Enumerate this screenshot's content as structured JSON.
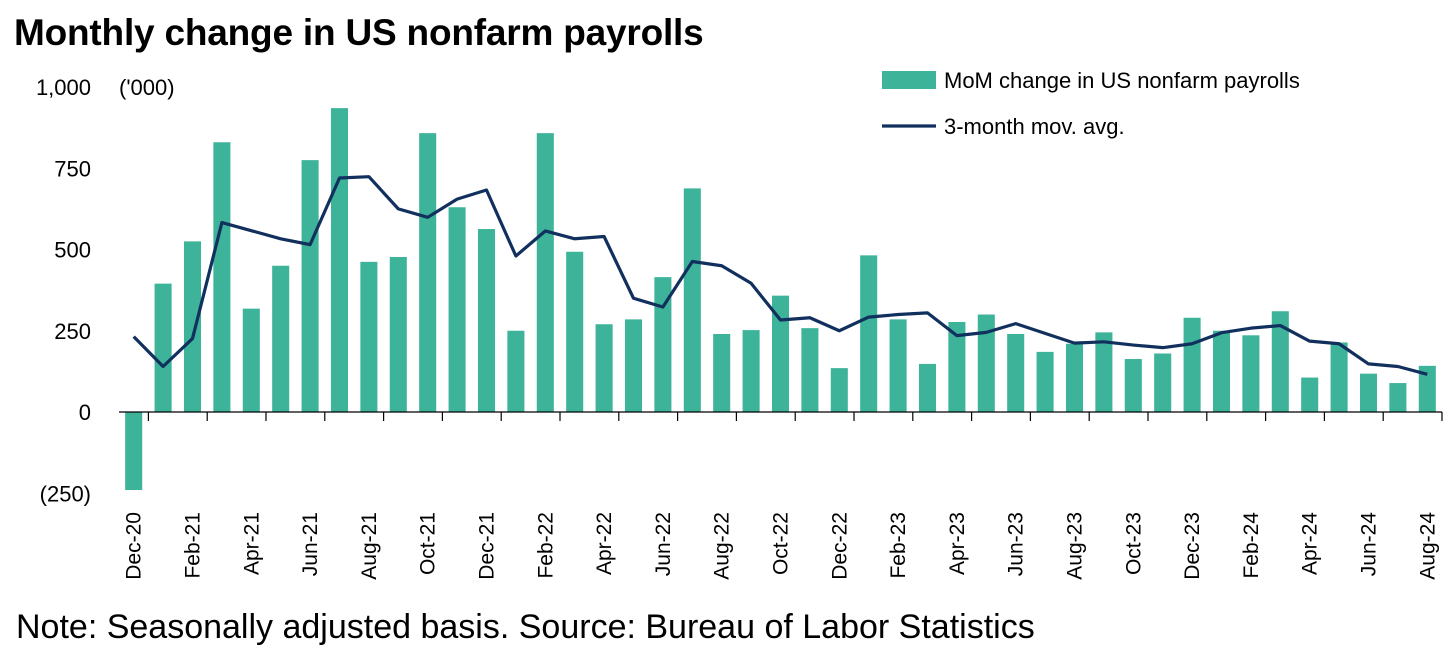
{
  "title": "Monthly change in US nonfarm payrolls",
  "note": "Note: Seasonally adjusted basis. Source: Bureau of Labor Statistics",
  "colors": {
    "bar": "#3db39a",
    "line": "#12305e",
    "axis": "#000000"
  },
  "chart_data": {
    "type": "bar",
    "title": "Monthly change in US nonfarm payrolls",
    "unit_label": "('000)",
    "xlabel": "",
    "ylabel": "('000)",
    "ylim": [
      -250,
      1000
    ],
    "yticks": [
      -250,
      0,
      250,
      500,
      750,
      1000
    ],
    "ytick_labels": [
      "(250)",
      "0",
      "250",
      "500",
      "750",
      "1,000"
    ],
    "grid": false,
    "legend_position": "top-right",
    "categories": [
      "Dec-20",
      "Jan-21",
      "Feb-21",
      "Mar-21",
      "Apr-21",
      "May-21",
      "Jun-21",
      "Jul-21",
      "Aug-21",
      "Sep-21",
      "Oct-21",
      "Nov-21",
      "Dec-21",
      "Jan-22",
      "Feb-22",
      "Mar-22",
      "Apr-22",
      "May-22",
      "Jun-22",
      "Jul-22",
      "Aug-22",
      "Sep-22",
      "Oct-22",
      "Nov-22",
      "Dec-22",
      "Jan-23",
      "Feb-23",
      "Mar-23",
      "Apr-23",
      "May-23",
      "Jun-23",
      "Jul-23",
      "Aug-23",
      "Sep-23",
      "Oct-23",
      "Nov-23",
      "Dec-23",
      "Jan-24",
      "Feb-24",
      "Mar-24",
      "Apr-24",
      "May-24",
      "Jun-24",
      "Jul-24",
      "Aug-24"
    ],
    "tick_labels": [
      "Dec-20",
      "Feb-21",
      "Apr-21",
      "Jun-21",
      "Aug-21",
      "Oct-21",
      "Dec-21",
      "Feb-22",
      "Apr-22",
      "Jun-22",
      "Aug-22",
      "Oct-22",
      "Dec-22",
      "Feb-23",
      "Apr-23",
      "Jun-23",
      "Aug-23",
      "Oct-23",
      "Dec-23",
      "Feb-24",
      "Apr-24",
      "Jun-24",
      "Aug-24"
    ],
    "series": [
      {
        "name": "MoM change in US nonfarm payrolls",
        "type": "bar",
        "values": [
          -240,
          395,
          525,
          830,
          318,
          450,
          775,
          935,
          462,
          477,
          858,
          630,
          563,
          250,
          858,
          493,
          270,
          285,
          415,
          688,
          240,
          252,
          358,
          258,
          135,
          482,
          285,
          148,
          277,
          300,
          240,
          185,
          210,
          245,
          163,
          180,
          290,
          250,
          236,
          310,
          106,
          214,
          118,
          89,
          142
        ]
      },
      {
        "name": "3-month mov. avg.",
        "type": "line",
        "values": [
          232,
          140,
          226,
          583,
          558,
          533,
          515,
          720,
          724,
          625,
          599,
          655,
          683,
          480,
          557,
          533,
          540,
          350,
          323,
          463,
          450,
          396,
          283,
          290,
          250,
          292,
          300,
          305,
          235,
          245,
          272,
          242,
          212,
          216,
          206,
          198,
          210,
          244,
          258,
          266,
          218,
          210,
          148,
          140,
          116
        ]
      }
    ]
  }
}
